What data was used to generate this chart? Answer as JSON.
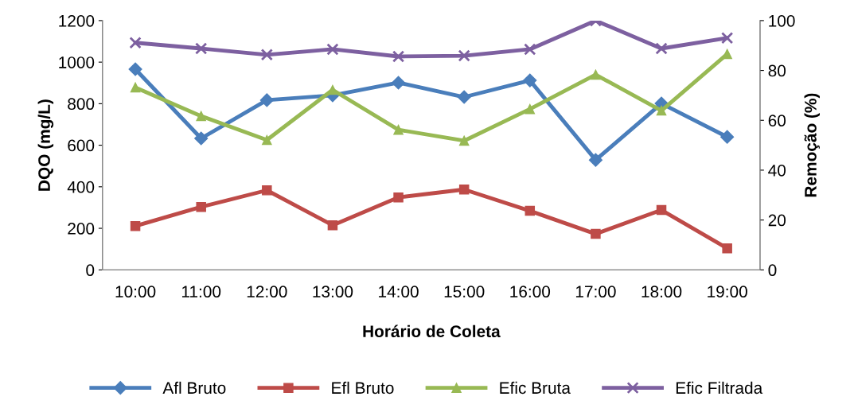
{
  "chart_data": {
    "type": "line",
    "xlabel": "Horário de Coleta",
    "ylabel": "DQO (mg/L)",
    "y2label": "Remoção (%)",
    "categories": [
      "10:00",
      "11:00",
      "12:00",
      "13:00",
      "14:00",
      "15:00",
      "16:00",
      "17:00",
      "18:00",
      "19:00"
    ],
    "ylim": [
      0,
      1200
    ],
    "yticks": [
      0,
      200,
      400,
      600,
      800,
      1000,
      1200
    ],
    "y2lim": [
      0,
      100
    ],
    "y2ticks": [
      0,
      20,
      40,
      60,
      80,
      100
    ],
    "grid": false,
    "legend": "bottom",
    "series": [
      {
        "name": "Afl Bruto",
        "color": "#4a7ebb",
        "marker": "diamond",
        "values": [
          966,
          633,
          817,
          840,
          901,
          832,
          912,
          529,
          801,
          640
        ]
      },
      {
        "name": "Efl Bruto",
        "color": "#be4b48",
        "marker": "square",
        "values": [
          211,
          303,
          383,
          215,
          349,
          387,
          284,
          173,
          288,
          104
        ]
      },
      {
        "name": "Efic Bruta",
        "color": "#98b954",
        "marker": "triangle",
        "axis": "y2",
        "values": [
          73.2,
          61.7,
          52.1,
          72.2,
          56.2,
          51.8,
          64.5,
          78.3,
          63.9,
          86.6
        ]
      },
      {
        "name": "Efic Filtrada",
        "color": "#7d60a0",
        "marker": "cross",
        "axis": "y2",
        "values": [
          91.1,
          88.8,
          86.3,
          88.5,
          85.6,
          85.9,
          88.5,
          100,
          88.8,
          93.0
        ]
      }
    ]
  }
}
